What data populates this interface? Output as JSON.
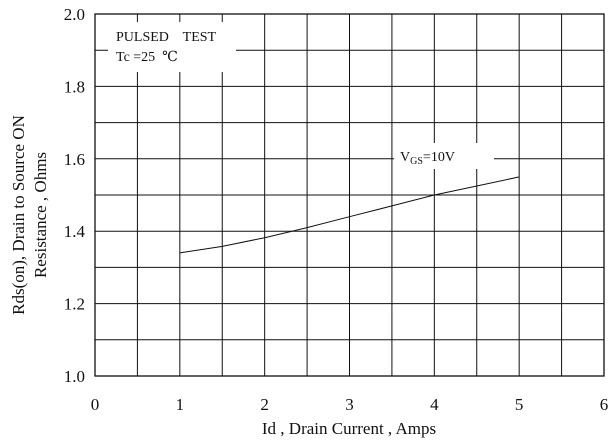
{
  "chart_data": {
    "type": "line",
    "xlabel": "Id , Drain Current , Amps",
    "ylabel_line1": "Rds(on), Drain to Source ON",
    "ylabel_line2": "Resistance , Ohms",
    "xlim": [
      0,
      6
    ],
    "ylim": [
      1.0,
      2.0
    ],
    "x_ticks": [
      "0",
      "1",
      "2",
      "3",
      "4",
      "5",
      "6"
    ],
    "y_ticks": [
      "1.0",
      "1.2",
      "1.4",
      "1.6",
      "1.8",
      "2.0"
    ],
    "grid": true,
    "annotations": {
      "test_line1": "PULSED    TEST",
      "test_line2": "Tc =25  ℃",
      "series_label_main": "V",
      "series_label_sub": "GS",
      "series_label_value": "=10V"
    },
    "series": [
      {
        "x": [
          1.0,
          1.5,
          2.0,
          2.5,
          3.0,
          3.5,
          4.0,
          4.5,
          5.0
        ],
        "y": [
          1.34,
          1.358,
          1.382,
          1.41,
          1.44,
          1.47,
          1.5,
          1.525,
          1.55
        ]
      }
    ]
  }
}
